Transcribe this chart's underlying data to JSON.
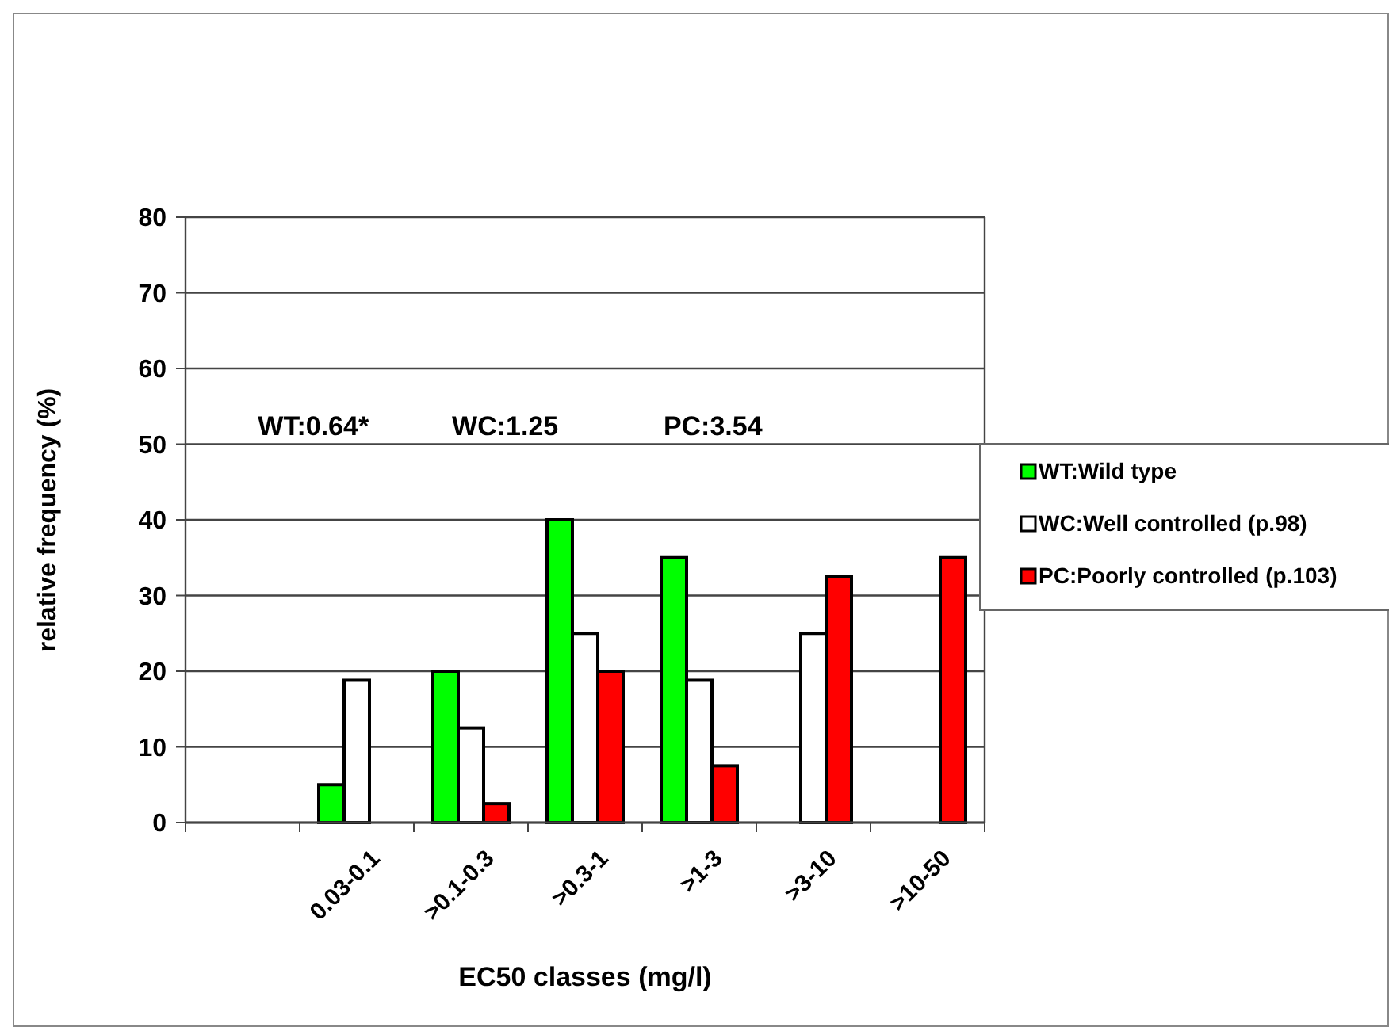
{
  "chart_data": {
    "type": "bar",
    "xlabel": "EC50 classes (mg/l)",
    "ylabel": "relative frequency (%)",
    "categories": [
      null,
      "0.03-0.1",
      ">0.1-0.3",
      ">0.3-1",
      ">1-3",
      ">3-10",
      ">10-50"
    ],
    "series": [
      {
        "name": "WT:Wild type",
        "color": "#00ff00",
        "values": [
          null,
          5,
          20,
          40,
          35,
          null,
          null
        ]
      },
      {
        "name": "WC:Well controlled (p.98)",
        "color": "#ffffff",
        "values": [
          null,
          18.8,
          12.5,
          25,
          18.8,
          25,
          null
        ]
      },
      {
        "name": "PC:Poorly controlled (p.103)",
        "color": "#ff0000",
        "values": [
          null,
          null,
          2.5,
          20,
          7.5,
          32.5,
          35
        ]
      }
    ],
    "ylim": [
      0,
      80
    ],
    "yticks": [
      0,
      10,
      20,
      30,
      40,
      50,
      60,
      70,
      80
    ],
    "grid": "y",
    "legend": "right",
    "annotations": [
      "WT:0.64*",
      "WC:1.25",
      "PC:3.54"
    ]
  }
}
